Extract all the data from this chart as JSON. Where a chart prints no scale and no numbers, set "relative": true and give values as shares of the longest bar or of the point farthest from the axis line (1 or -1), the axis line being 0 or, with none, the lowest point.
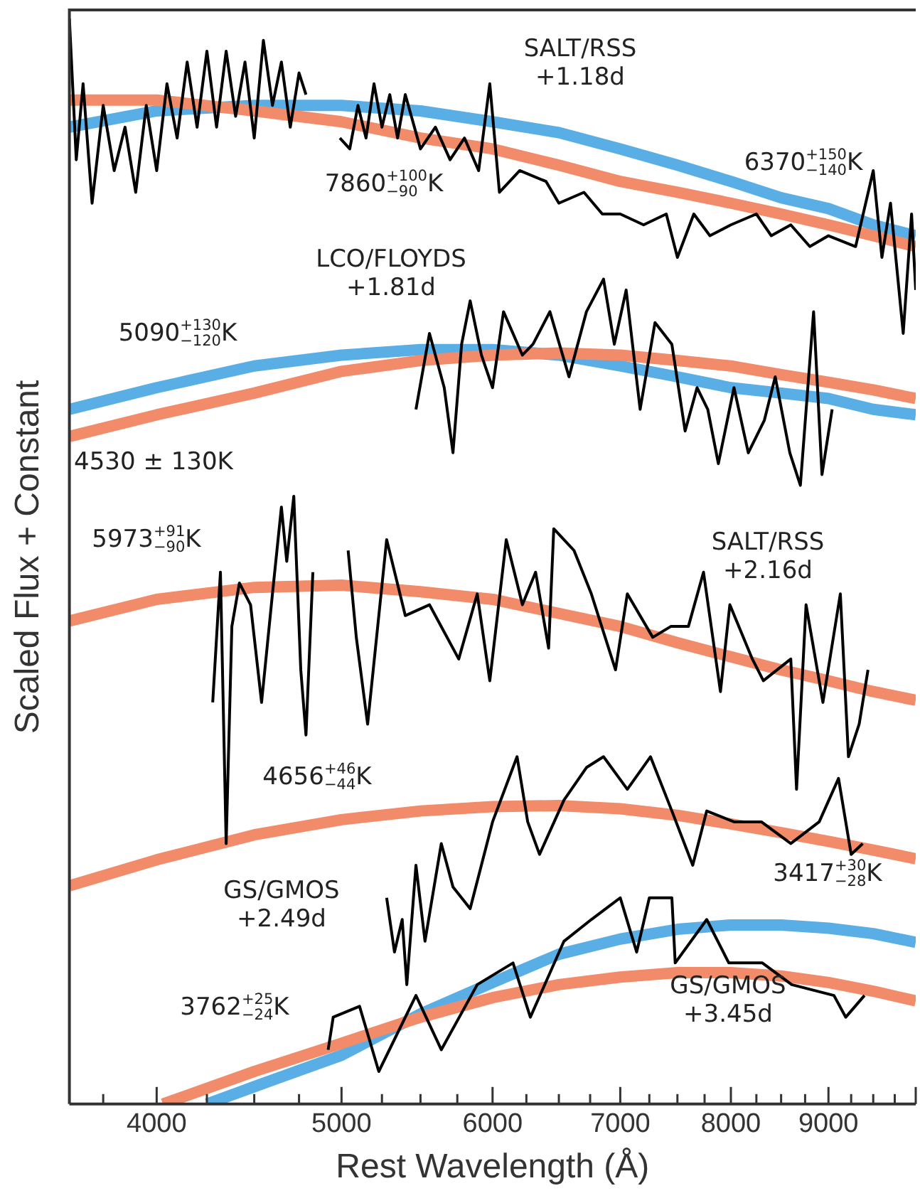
{
  "chart_data": {
    "type": "line",
    "xlabel": "Rest Wavelength (Å)",
    "ylabel": "Scaled Flux + Constant",
    "log": "x",
    "relative": true,
    "xlim": [
      3600,
      10000
    ],
    "xticks": [
      {
        "value": 3750,
        "label": null
      },
      4000,
      {
        "value": 4250,
        "label": null
      },
      {
        "value": 4500,
        "label": null
      },
      {
        "value": 4750,
        "label": null
      },
      5000,
      {
        "value": 5250,
        "label": null
      },
      {
        "value": 5500,
        "label": null
      },
      {
        "value": 5750,
        "label": null
      },
      6000,
      {
        "value": 6250,
        "label": null
      },
      {
        "value": 6500,
        "label": null
      },
      {
        "value": 6750,
        "label": null
      },
      7000,
      {
        "value": 7250,
        "label": null
      },
      {
        "value": 7500,
        "label": null
      },
      {
        "value": 7750,
        "label": null
      },
      8000,
      {
        "value": 8250,
        "label": null
      },
      {
        "value": 8500,
        "label": null
      },
      {
        "value": 8750,
        "label": null
      },
      9000,
      {
        "value": 9250,
        "label": null
      },
      {
        "value": 9500,
        "label": null
      },
      {
        "value": 9750,
        "label": null
      },
      {
        "value": 10000,
        "label": null
      }
    ],
    "series": [
      {
        "type": "line",
        "color": "#f28b6a",
        "x": [
          3600,
          4000,
          4500,
          5000,
          5500,
          6000,
          6500,
          7000,
          7500,
          8000,
          8500,
          9000,
          9500,
          10000
        ],
        "values": [
          0.925,
          0.925,
          0.915,
          0.905,
          0.89,
          0.88,
          0.865,
          0.85,
          0.84,
          0.83,
          0.82,
          0.81,
          0.8,
          0.79
        ]
      },
      {
        "type": "line",
        "color": "#5aaee6",
        "x": [
          3600,
          4000,
          4500,
          5000,
          5500,
          6000,
          6500,
          7000,
          7500,
          8000,
          8500,
          9000,
          9500,
          10000
        ],
        "values": [
          0.9,
          0.915,
          0.92,
          0.92,
          0.915,
          0.905,
          0.895,
          0.88,
          0.865,
          0.85,
          0.835,
          0.825,
          0.81,
          0.8
        ]
      },
      {
        "type": "line",
        "color": "#000000",
        "x": [
          3600,
          3630,
          3660,
          3700,
          3750,
          3800,
          3850,
          3900,
          3950,
          4000,
          4050,
          4100,
          4150,
          4200,
          4250,
          4300,
          4350,
          4400,
          4450,
          4500,
          4550,
          4600,
          4650,
          4700,
          4750,
          4790,
          4800,
          4990,
          5050,
          5100,
          5150,
          5200,
          5250,
          5300,
          5350,
          5400,
          5500,
          5600,
          5700,
          5800,
          5900,
          5980,
          6050,
          6200,
          6400,
          6500,
          6700,
          6850,
          7000,
          7200,
          7400,
          7500,
          7650,
          7800,
          8000,
          8250,
          8400,
          8600,
          8800,
          9000,
          9300,
          9500,
          9600,
          9700,
          9850,
          9950,
          10000
        ],
        "values": [
          1.0,
          0.87,
          0.94,
          0.83,
          0.92,
          0.86,
          0.9,
          0.84,
          0.92,
          0.86,
          0.94,
          0.89,
          0.96,
          0.9,
          0.97,
          0.9,
          0.97,
          0.91,
          0.96,
          0.89,
          0.98,
          0.92,
          0.96,
          0.9,
          0.95,
          0.93,
          null,
          0.89,
          0.88,
          0.92,
          0.89,
          0.94,
          0.9,
          0.93,
          0.89,
          0.93,
          0.88,
          0.9,
          0.87,
          0.89,
          0.86,
          0.94,
          0.84,
          0.86,
          0.85,
          0.83,
          0.84,
          0.82,
          0.82,
          0.81,
          0.82,
          0.78,
          0.82,
          0.8,
          0.81,
          0.82,
          0.8,
          0.81,
          0.79,
          0.8,
          0.79,
          0.86,
          0.78,
          0.83,
          0.71,
          0.82,
          0.75
        ]
      },
      {
        "type": "line",
        "color": "#f28b6a",
        "x": [
          3600,
          4000,
          4500,
          5000,
          5500,
          6000,
          6500,
          7000,
          7500,
          8000,
          8500,
          9000,
          9500,
          10000
        ],
        "values": [
          0.615,
          0.635,
          0.655,
          0.675,
          0.685,
          0.69,
          0.692,
          0.69,
          0.685,
          0.68,
          0.672,
          0.665,
          0.658,
          0.65
        ]
      },
      {
        "type": "line",
        "color": "#5aaee6",
        "x": [
          3600,
          4000,
          4500,
          5000,
          5500,
          6000,
          6500,
          7000,
          7500,
          8000,
          8500,
          9000,
          9500,
          10000
        ],
        "values": [
          0.64,
          0.66,
          0.68,
          0.69,
          0.695,
          0.695,
          0.69,
          0.68,
          0.67,
          0.66,
          0.655,
          0.65,
          0.64,
          0.635
        ]
      },
      {
        "type": "line",
        "color": "#000000",
        "x": [
          5470,
          5560,
          5660,
          5720,
          5780,
          5840,
          5920,
          6000,
          6080,
          6220,
          6300,
          6430,
          6580,
          6720,
          6860,
          6950,
          7050,
          7170,
          7300,
          7450,
          7570,
          7680,
          7780,
          7880,
          8030,
          8170,
          8330,
          8440,
          8590,
          8700,
          8840,
          8930,
          9040
        ],
        "values": [
          0.64,
          0.71,
          0.66,
          0.6,
          0.7,
          0.74,
          0.69,
          0.66,
          0.73,
          0.69,
          0.7,
          0.73,
          0.67,
          0.73,
          0.76,
          0.7,
          0.75,
          0.64,
          0.72,
          0.7,
          0.62,
          0.66,
          0.64,
          0.59,
          0.66,
          0.6,
          0.63,
          0.67,
          0.6,
          0.57,
          0.73,
          0.58,
          0.64
        ]
      },
      {
        "type": "line",
        "color": "#f28b6a",
        "x": [
          3600,
          4000,
          4500,
          5000,
          5500,
          6000,
          6500,
          7000,
          7500,
          8000,
          8500,
          9000,
          9500,
          10000
        ],
        "values": [
          0.445,
          0.465,
          0.476,
          0.478,
          0.472,
          0.465,
          0.452,
          0.44,
          0.425,
          0.412,
          0.4,
          0.39,
          0.38,
          0.372
        ]
      },
      {
        "type": "line",
        "color": "#000000",
        "x": [
          4280,
          4320,
          4350,
          4380,
          4420,
          4480,
          4540,
          4600,
          4650,
          4680,
          4720,
          4760,
          4790,
          4830,
          4900,
          5040,
          5090,
          5160,
          5280,
          5400,
          5560,
          5760,
          5890,
          5980,
          6100,
          6220,
          6320,
          6420,
          6460,
          6620,
          6760,
          6960,
          7060,
          7280,
          7440,
          7600,
          7740,
          7900,
          7990,
          8210,
          8320,
          8600,
          8660,
          8760,
          8940,
          9130,
          9220,
          9340,
          9440
        ],
        "values": [
          0.37,
          0.49,
          0.24,
          0.44,
          0.48,
          0.46,
          0.37,
          0.47,
          0.55,
          0.5,
          0.56,
          0.4,
          0.34,
          0.49,
          null,
          0.51,
          0.43,
          0.35,
          0.52,
          0.45,
          0.46,
          0.41,
          0.47,
          0.39,
          0.52,
          0.46,
          0.49,
          0.42,
          0.53,
          0.51,
          0.47,
          0.4,
          0.47,
          0.43,
          0.44,
          0.44,
          0.49,
          0.38,
          0.46,
          0.41,
          0.39,
          0.41,
          0.29,
          0.46,
          0.37,
          0.47,
          0.32,
          0.35,
          0.4
        ]
      },
      {
        "type": "line",
        "color": "#f28b6a",
        "x": [
          3600,
          4000,
          4500,
          5000,
          5500,
          6000,
          6500,
          7000,
          7500,
          8000,
          8500,
          9000,
          9500,
          10000
        ],
        "values": [
          0.201,
          0.225,
          0.248,
          0.262,
          0.27,
          0.274,
          0.275,
          0.272,
          0.266,
          0.258,
          0.25,
          0.242,
          0.234,
          0.226
        ]
      },
      {
        "type": "line",
        "color": "#000000",
        "x": [
          5280,
          5330,
          5380,
          5410,
          5470,
          5530,
          5640,
          5720,
          5840,
          6000,
          6180,
          6260,
          6350,
          6540,
          6720,
          6860,
          7060,
          7260,
          7450,
          7640,
          7770,
          8030,
          8300,
          8600,
          8900,
          9110,
          9250,
          9380
        ],
        "values": [
          0.19,
          0.14,
          0.17,
          0.11,
          0.22,
          0.15,
          0.24,
          0.2,
          0.18,
          0.26,
          0.32,
          0.26,
          0.23,
          0.28,
          0.31,
          0.32,
          0.29,
          0.32,
          0.27,
          0.22,
          0.27,
          0.26,
          0.26,
          0.24,
          0.26,
          0.3,
          0.23,
          0.24
        ]
      },
      {
        "type": "line",
        "color": "#f28b6a",
        "x": [
          4030,
          4500,
          5000,
          5500,
          6000,
          6500,
          7000,
          7500,
          8000,
          8500,
          9000,
          9500,
          10000
        ],
        "values": [
          0.0,
          0.03,
          0.056,
          0.08,
          0.098,
          0.11,
          0.117,
          0.121,
          0.121,
          0.118,
          0.112,
          0.104,
          0.095
        ]
      },
      {
        "type": "line",
        "color": "#5aaee6",
        "x": [
          4250,
          4500,
          5000,
          5500,
          6000,
          6500,
          7000,
          7500,
          8000,
          8500,
          9000,
          9500,
          10000
        ],
        "values": [
          0.0,
          0.016,
          0.045,
          0.083,
          0.112,
          0.138,
          0.152,
          0.161,
          0.165,
          0.165,
          0.162,
          0.157,
          0.149
        ]
      },
      {
        "type": "line",
        "color": "#000000",
        "x": [
          4920,
          4950,
          5110,
          5230,
          5470,
          5640,
          5890,
          6150,
          6280,
          6540,
          6760,
          7000,
          7140,
          7250,
          7450,
          7480,
          7770,
          7980,
          8310,
          8610,
          9060,
          9190,
          9400
        ],
        "values": [
          0.05,
          0.08,
          0.09,
          0.03,
          0.1,
          0.05,
          0.11,
          0.13,
          0.08,
          0.15,
          0.17,
          0.19,
          0.14,
          0.19,
          0.19,
          0.13,
          0.17,
          0.13,
          0.13,
          0.11,
          0.1,
          0.08,
          0.1
        ]
      }
    ],
    "annotations": [
      "SALT/RSS\n+1.18d",
      "7860$^{+100}$$_{−90}$K",
      "6370$^{+150}$$_{−140}$K",
      "LCO/FLOYDS\n+1.81d",
      "5090$^{+130}$$_{−120}$K",
      "4530 ± 130K",
      "5973$^{+91}$$_{−90}$K",
      "SALT/RSS\n+2.16d",
      "4656$^{+46}$$_{−44}$K",
      "GS/GMOS\n+2.49d",
      "3417$^{+30}$$_{−28}$K",
      "3762$^{+25}$$_{−24}$K",
      "GS/GMOS\n+3.45d"
    ]
  }
}
